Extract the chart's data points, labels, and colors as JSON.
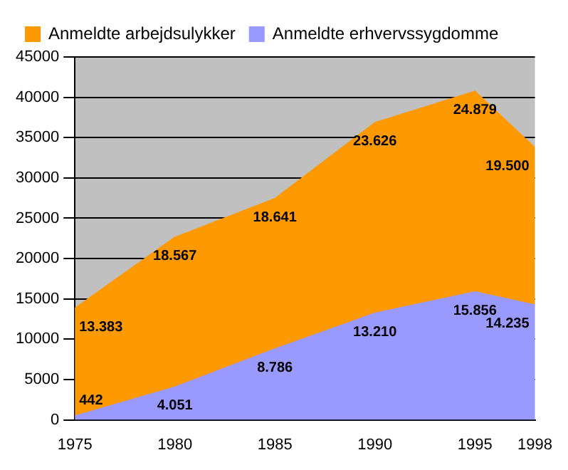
{
  "chart_data": {
    "type": "area",
    "x": [
      1975,
      1980,
      1985,
      1990,
      1995,
      1998
    ],
    "stacked": true,
    "series": [
      {
        "name": "Anmeldte erhvervssygdomme",
        "color": "#9999ff",
        "values": [
          442,
          4051,
          8786,
          13210,
          15856,
          14235
        ],
        "value_labels": [
          "442",
          "4.051",
          "8.786",
          "13.210",
          "15.856",
          "14.235"
        ]
      },
      {
        "name": "Anmeldte arbejdsulykker",
        "color": "#ff9900",
        "values": [
          13383,
          18567,
          18641,
          23626,
          24879,
          19500
        ],
        "value_labels": [
          "13.383",
          "18.567",
          "18.641",
          "23.626",
          "24.879",
          "19.500"
        ]
      }
    ],
    "xlim": [
      1975,
      1998
    ],
    "xticks": [
      1975,
      1980,
      1985,
      1990,
      1995,
      1998
    ],
    "ylim": [
      0,
      45000
    ],
    "yticks": [
      0,
      5000,
      10000,
      15000,
      20000,
      25000,
      30000,
      35000,
      40000,
      45000
    ],
    "grid": "y",
    "legend": "top left"
  }
}
